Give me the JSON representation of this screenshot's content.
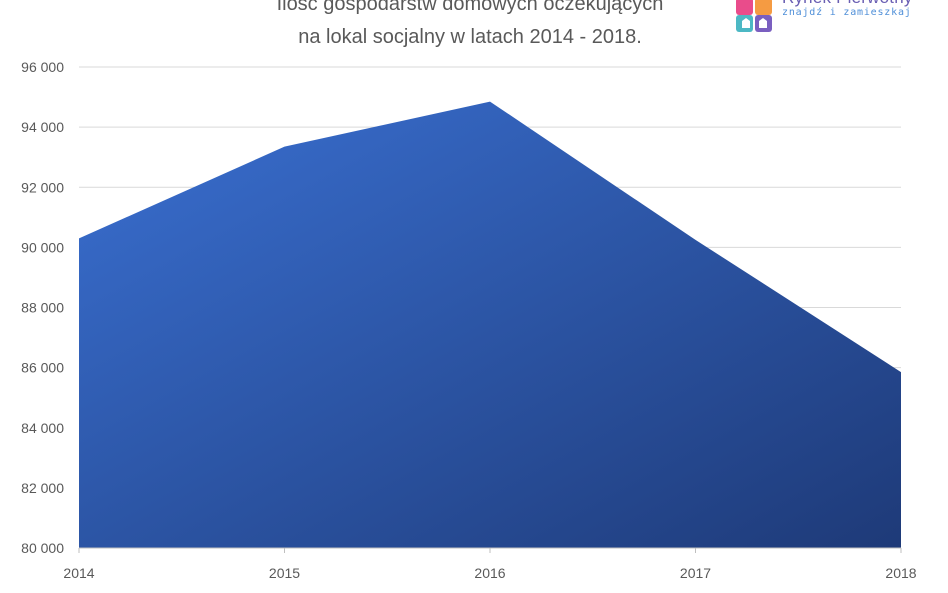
{
  "logo": {
    "name": "Rynek Pierwotny",
    "tagline": "znajdź i zamieszkaj",
    "colors": [
      "#e94c8b",
      "#f59b42",
      "#4cb8c4",
      "#7a5fc0"
    ]
  },
  "chart_data": {
    "type": "area",
    "title_lines": [
      "Ilość gospodarstw domowych oczekujących",
      "na lokal socjalny w latach 2014 - 2018."
    ],
    "xlabel": "",
    "ylabel": "",
    "categories": [
      "2014",
      "2015",
      "2016",
      "2017",
      "2018"
    ],
    "values": [
      90300,
      93350,
      94850,
      90250,
      85850
    ],
    "ylim": [
      80000,
      96000
    ],
    "yticks": [
      80000,
      82000,
      84000,
      86000,
      88000,
      90000,
      92000,
      94000,
      96000
    ],
    "ytick_labels": [
      "80 000",
      "82 000",
      "84 000",
      "86 000",
      "88 000",
      "90 000",
      "92 000",
      "94 000",
      "96 000"
    ],
    "grid": true,
    "legend": "none",
    "fill_gradient": [
      "#3a70d2",
      "#1e3a78"
    ],
    "grid_color": "#d9d9d9"
  }
}
